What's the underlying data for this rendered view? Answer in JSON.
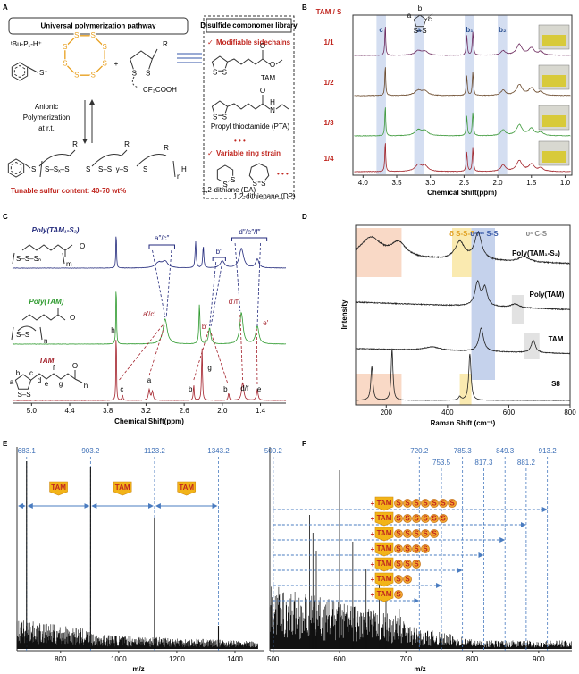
{
  "panel_a": {
    "label": "A",
    "pathway_title": "Universal polymerization pathway",
    "initiator": "ᵗBu-P₁-H⁺",
    "thiolate": "S⁻",
    "sulfur": "S",
    "r_group": "R",
    "plus": "+",
    "acid": "CF₃COOH",
    "conditions": [
      "Anionic",
      "Polymerization",
      "at r.t."
    ],
    "polymer_segments": [
      "S",
      "S–Sₓ–S",
      "S",
      "S–S_y–S",
      "S"
    ],
    "repeat": "n",
    "end_group": "H",
    "sulfur_content": "Tunable sulfur content: 40-70 wt%",
    "library_title": "Disulfide comonomer library",
    "check": "✓",
    "sidechain_heading": "Modifiable sidechains",
    "ring_heading": "Variable ring strain",
    "oxygen": "O",
    "amide": "N",
    "hydrogen": "H",
    "tam": "TAM",
    "pta": "Propyl thioctamide (PTA)",
    "ellipsis": "• • •",
    "da": "1,2-dithiane (DA)",
    "dp": "1,2-dithiepane (DP)"
  },
  "panel_b": {
    "label": "B",
    "ratio_title": "TAM / S",
    "ratios": [
      "1/1",
      "1/2",
      "1/3",
      "1/4"
    ],
    "colors": [
      "#6d2b5e",
      "#6b4a2c",
      "#3f9a3c",
      "#a3242a"
    ],
    "band_labels": [
      "c",
      "a",
      "b₁",
      "b₂"
    ],
    "structure_labels": [
      "a",
      "b",
      "c"
    ],
    "disulfide": "S–S",
    "xlim": [
      4.15,
      0.9
    ],
    "xticks": [
      {
        "value": 4,
        "label": "4.0"
      },
      3.5,
      {
        "value": 3,
        "label": "3.0"
      },
      2.5,
      {
        "value": 2,
        "label": "2.0"
      },
      1.5,
      {
        "value": 1,
        "label": "1.0"
      }
    ],
    "xlabel": "Chemical Shift(ppm)"
  },
  "panel_c": {
    "label": "C",
    "series": [
      {
        "name": "Poly(TAM₁-S₂)",
        "color": "#232a7c"
      },
      {
        "name": "Poly(TAM)",
        "color": "#2e9a2e"
      },
      {
        "name": "TAM",
        "color": "#a3202a"
      }
    ],
    "peak_labels": [
      [
        "a″/c″",
        "b″",
        "d″/e″/f″"
      ],
      [
        "a′/c′",
        "b′",
        "d′/f′",
        "e′"
      ],
      [
        "h",
        "c",
        "a",
        "g",
        "b",
        "b",
        "d/f",
        "e"
      ]
    ],
    "structure_letters": [
      "a",
      "b",
      "c",
      "d",
      "e",
      "f",
      "g",
      "h"
    ],
    "sulfur_run": "S–S–Sₙ",
    "repeat": [
      "m",
      "n"
    ],
    "disulfide": "S–S",
    "oxygen": "O",
    "xlim": [
      5.3,
      1.0
    ],
    "xticks": [
      {
        "value": 5,
        "label": "5.0"
      },
      4.4,
      3.8,
      3.2,
      2.6,
      {
        "value": 2,
        "label": "2.0"
      },
      1.4
    ],
    "xlabel": "Chemical Shift(ppm)"
  },
  "panel_d": {
    "label": "D",
    "bands": [
      "δ S-S-S",
      "υˢ/ᵃˢ S-S",
      "υˢ C-S"
    ],
    "series": [
      "Poly(TAM₁-S₂)",
      "Poly(TAM)",
      "TAM",
      "S8"
    ],
    "ylabel": "Intensity",
    "xlabel": "Raman Shift (cm⁻¹)",
    "xlim": [
      100,
      800
    ],
    "xticks": [
      200,
      400,
      600,
      800
    ]
  },
  "panel_e": {
    "label": "E",
    "peaks": [
      683.1,
      903.2,
      1123.2,
      1343.2
    ],
    "badge": "TAM",
    "xlim": [
      650,
      1480
    ],
    "xticks": [
      800,
      1000,
      1200,
      1400
    ],
    "xlabel": "m/z"
  },
  "panel_f": {
    "label": "F",
    "peaks_top": [
      500.2,
      720.2,
      785.3,
      849.3,
      913.2
    ],
    "peaks_lower": [
      753.5,
      817.3,
      881.2
    ],
    "badge": "TAM",
    "plus": "+",
    "sulfur": "S",
    "xlim": [
      495,
      950
    ],
    "xticks": [
      500,
      600,
      700,
      800,
      900
    ],
    "xlabel": "m/z"
  }
}
